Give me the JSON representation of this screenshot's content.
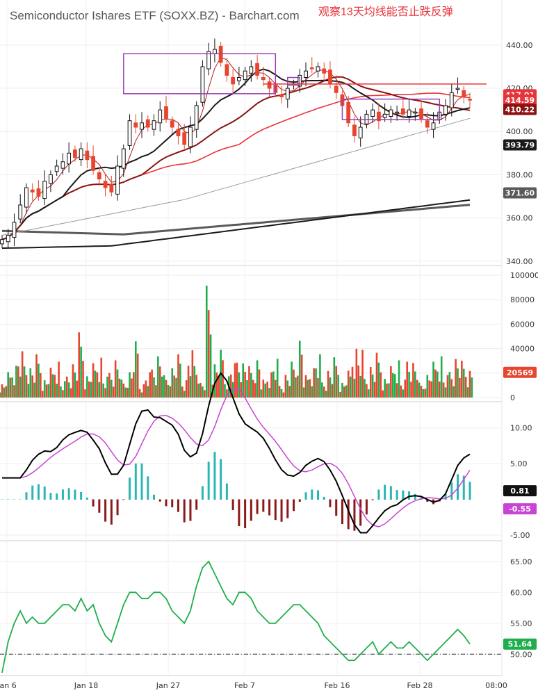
{
  "header": {
    "title": "Semiconductor Ishares ETF (SOXX.BZ) - Barchart.com",
    "annotation": "观察13天均线能否止跌反弹"
  },
  "colors": {
    "up": "#1fae4b",
    "down": "#e8452f",
    "ma_fast": "#b01c1c",
    "ma_13": "#1a1a1a",
    "ma_mid": "#8b1212",
    "ma_red": "#e8333a",
    "ma_gray": "#9a9a9a",
    "ma_long": "#1a1a1a",
    "ma_longest": "#5a5a5a",
    "macd_line": "#000000",
    "signal_line": "#c844d4",
    "hist_pos": "#2bb5b5",
    "hist_neg": "#8b1a1a",
    "rsi": "#1fae4b",
    "box": "#9b3fb4",
    "resistance": "#e8333a"
  },
  "chart_data": [
    {
      "type": "candlestick",
      "name": "price",
      "ylim": [
        338,
        448
      ],
      "yticks": [
        "440.00",
        "420.00",
        "400.00",
        "380.00",
        "360.00",
        "340.00"
      ],
      "x_labels": [
        "Jan 6",
        "Jan 18",
        "Jan 27",
        "Feb 7",
        "Feb 16",
        "Feb 28",
        "08:00"
      ],
      "last_tags": [
        {
          "label": "417.01",
          "color": "#e8333a",
          "y": 417.01
        },
        {
          "label": "414.59",
          "color": "#e8333a",
          "y": 414.59
        },
        {
          "label": "410.22",
          "color": "#8b1212",
          "y": 410.22
        },
        {
          "label": "393.79",
          "color": "#1a1a1a",
          "y": 393.79
        },
        {
          "label": "371.60",
          "color": "#5a5a5a",
          "y": 371.6
        }
      ],
      "closes": [
        350,
        352,
        358,
        366,
        374,
        372,
        370,
        377,
        380,
        384,
        386,
        390,
        388,
        392,
        387,
        382,
        378,
        374,
        372,
        384,
        392,
        405,
        402,
        404,
        402,
        405,
        410,
        406,
        402,
        398,
        394,
        402,
        412,
        430,
        437,
        438,
        432,
        426,
        422,
        425,
        428,
        430,
        426,
        424,
        420,
        418,
        416,
        420,
        422,
        426,
        428,
        429,
        430,
        427,
        422,
        418,
        412,
        404,
        398,
        402,
        408,
        410,
        405,
        408,
        410,
        409,
        408,
        410,
        409,
        406,
        402,
        404,
        409,
        412,
        418,
        420,
        416,
        414.59
      ],
      "resistance_level": 422,
      "boxes": [
        {
          "x0": 20,
          "x1": 45,
          "y0": 417.5,
          "y1": 436
        },
        {
          "x0": 47,
          "x1": 49,
          "y0": 421.5,
          "y1": 425
        },
        {
          "x0": 56,
          "x1": 72,
          "y0": 405.5,
          "y1": 415
        }
      ]
    },
    {
      "type": "bar",
      "name": "volume",
      "ylim": [
        0,
        100000
      ],
      "yticks": [
        "100000",
        "80000",
        "60000",
        "40000",
        "20000",
        "0"
      ],
      "last_tag": "20569",
      "highlight_value": 90000
    },
    {
      "type": "line",
      "name": "macd",
      "ylim": [
        -5.5,
        12.5
      ],
      "yticks": [
        "10.00",
        "5.00",
        "-5.00"
      ],
      "tags": [
        {
          "label": "0.81",
          "color": "#111111",
          "y": 0.81
        },
        {
          "label": "-0.55",
          "color": "#c844d4",
          "y": -0.55
        }
      ]
    },
    {
      "type": "line",
      "name": "rsi",
      "ylim": [
        47,
        67
      ],
      "yticks": [
        "65.00",
        "60.00",
        "55.00",
        "50.00"
      ],
      "reference": 50,
      "last_tag": "51.64",
      "values": [
        47,
        52,
        55,
        57,
        55,
        56,
        55,
        55,
        56,
        57,
        58,
        58,
        57,
        59,
        57,
        58,
        55,
        53,
        52,
        55,
        58,
        60,
        60,
        59,
        59,
        60,
        60,
        59,
        57,
        56,
        55,
        57,
        61,
        64,
        65,
        63,
        61,
        59,
        58,
        60,
        60,
        59,
        57,
        56,
        55,
        55,
        56,
        57,
        58,
        58,
        57,
        56,
        55,
        53,
        52,
        51,
        50,
        49,
        49,
        50,
        51,
        52,
        50,
        51,
        52,
        51,
        51,
        52,
        51,
        50,
        49,
        50,
        51,
        52,
        53,
        54,
        53,
        51.64
      ]
    }
  ]
}
